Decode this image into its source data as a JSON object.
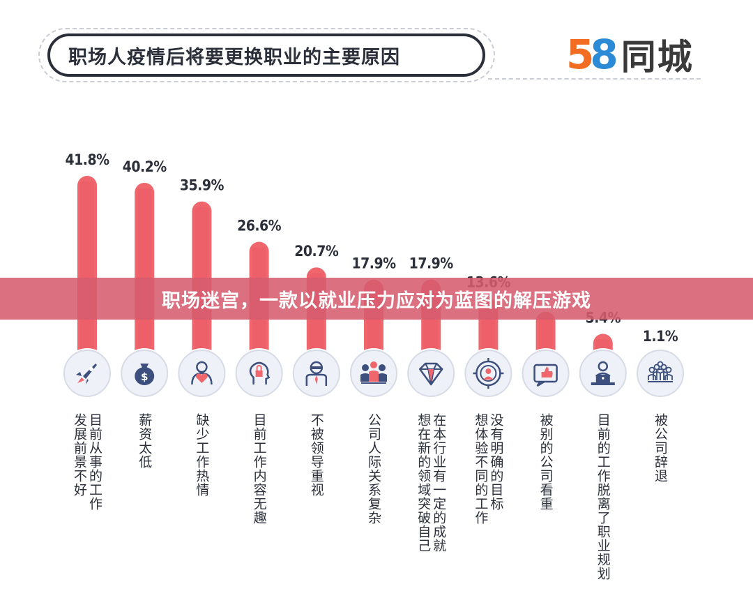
{
  "header": {
    "title": "职场人疫情后将要更换职业的主要原因"
  },
  "brand": {
    "digit_5": "5",
    "digit_8": "8",
    "name": "同城"
  },
  "banner": {
    "text": "职场迷宫，一款以就业压力应对为蓝图的解压游戏"
  },
  "chart_data": {
    "type": "bar",
    "title": "职场人疫情后将要更换职业的主要原因",
    "categories": [
      "目前从事的工作发展前景不好",
      "薪资太低",
      "缺少工作热情",
      "目前工作内容无趣",
      "不被领导重视",
      "公司人际关系复杂",
      "在本行业有一定的成就想在新的领域突破自己",
      "没有明确的目标想体验不同的工作",
      "被别的公司看重",
      "目前的工作脱离了职业规划",
      "被公司辞退"
    ],
    "category_lines": [
      [
        "目前从事的工作",
        "发展前景不好"
      ],
      [
        "薪资太低"
      ],
      [
        "缺少工作热情"
      ],
      [
        "目前工作内容无趣"
      ],
      [
        "不被领导重视"
      ],
      [
        "公司人际关系复杂"
      ],
      [
        "在本行业有一定的成就",
        "想在新的领域突破自己"
      ],
      [
        "没有明确的目标",
        "想体验不同的工作"
      ],
      [
        "被别的公司看重"
      ],
      [
        "目前的工作脱离了职业规划"
      ],
      [
        "被公司辞退"
      ]
    ],
    "values": [
      41.8,
      40.2,
      35.9,
      26.6,
      20.7,
      17.9,
      17.9,
      13.6,
      10.5,
      5.4,
      1.1
    ],
    "value_labels": [
      "41.8%",
      "40.2%",
      "35.9%",
      "26.6%",
      "20.7%",
      "17.9%",
      "17.9%",
      "13.6%",
      "",
      "5.4%",
      "1.1%"
    ],
    "icons": [
      "rocket-icon",
      "money-bag-icon",
      "heart-person-icon",
      "head-lock-icon",
      "boss-icon",
      "team-icon",
      "diamond-icon",
      "target-person-icon",
      "thumbs-up-icon",
      "laptop-person-icon",
      "group-icon"
    ],
    "ylim": [
      0,
      45
    ],
    "colors": {
      "bar": "#f0666d",
      "circle_fill": "#eef1f8",
      "circle_stroke": "#d6dbe6",
      "icon": "#3d4f7c",
      "icon_accent": "#f0666d",
      "text": "#2b2f3a"
    }
  }
}
